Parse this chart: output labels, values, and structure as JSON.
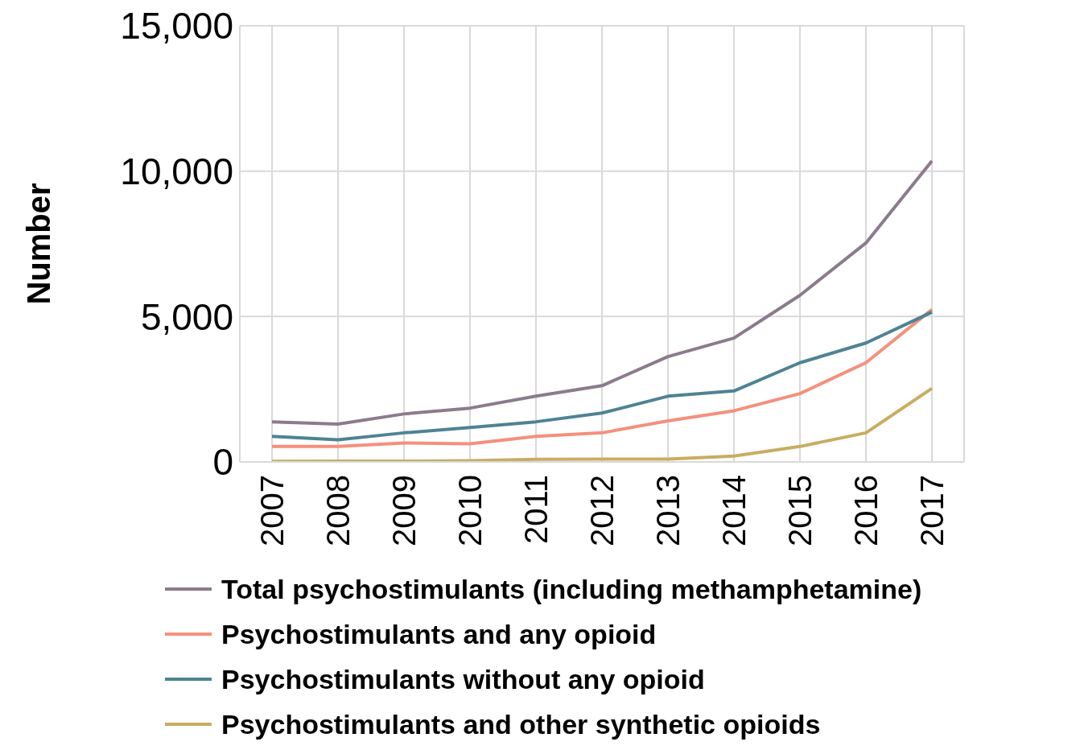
{
  "chart_data": {
    "type": "line",
    "ylabel": "Number",
    "categories": [
      "2007",
      "2008",
      "2009",
      "2010",
      "2011",
      "2012",
      "2013",
      "2014",
      "2015",
      "2016",
      "2017"
    ],
    "series": [
      {
        "name": "Total psychostimulants (including methamphetamine)",
        "color": "#8c7b8c",
        "values": [
          1380,
          1300,
          1650,
          1850,
          2260,
          2620,
          3620,
          4260,
          5730,
          7530,
          10350
        ]
      },
      {
        "name": "Psychostimulants and any opioid",
        "color": "#f4907c",
        "values": [
          530,
          530,
          650,
          620,
          880,
          1000,
          1410,
          1760,
          2350,
          3410,
          5240
        ]
      },
      {
        "name": "Psychostimulants without any opioid",
        "color": "#4e8394",
        "values": [
          880,
          760,
          1000,
          1180,
          1380,
          1680,
          2260,
          2440,
          3410,
          4090,
          5150
        ]
      },
      {
        "name": "Psychostimulants and other synthetic opioids",
        "color": "#c8ad62",
        "values": [
          20,
          30,
          30,
          40,
          90,
          100,
          100,
          200,
          530,
          1000,
          2530
        ]
      }
    ],
    "ylim": [
      0,
      15000
    ],
    "yticks": [
      {
        "value": 0,
        "label": "0"
      },
      {
        "value": 5000,
        "label": "5,000"
      },
      {
        "value": 10000,
        "label": "10,000"
      },
      {
        "value": 15000,
        "label": "15,000"
      }
    ],
    "grid": true,
    "legend": "bottom",
    "marker": "none",
    "line_style": "solid"
  }
}
